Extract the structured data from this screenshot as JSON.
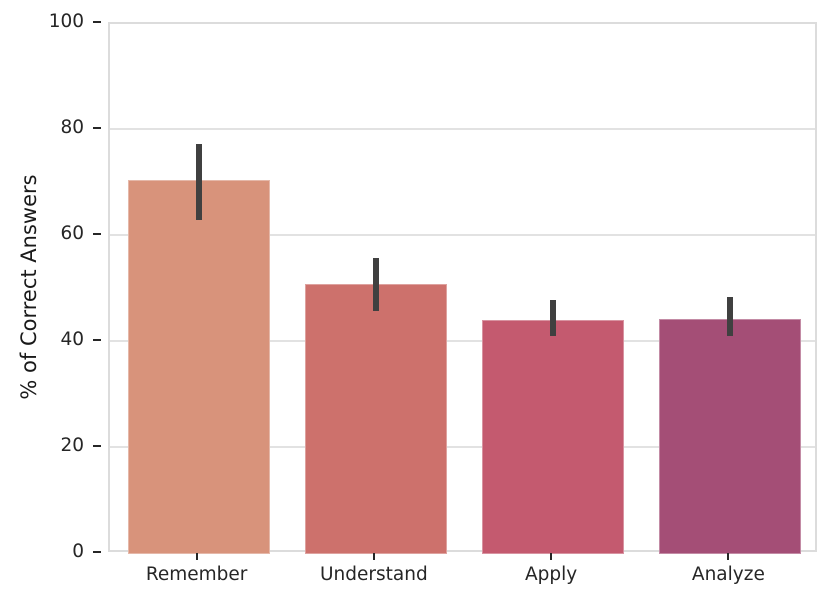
{
  "chart_data": {
    "type": "bar",
    "title": "",
    "xlabel": "",
    "ylabel": "% of Correct Answers",
    "categories": [
      "Remember",
      "Understand",
      "Apply",
      "Analyze"
    ],
    "values": [
      70.5,
      51.0,
      44.2,
      44.4
    ],
    "error_low": [
      63.1,
      45.8,
      41.1,
      41.1
    ],
    "error_high": [
      77.3,
      55.9,
      47.9,
      48.4
    ],
    "bar_colors": [
      "#d8937b",
      "#cd716c",
      "#c45a6f",
      "#a44e76"
    ],
    "ylim": [
      0,
      100
    ],
    "yticks": [
      0,
      20,
      40,
      60,
      80,
      100
    ],
    "grid": true,
    "legend": "none",
    "colors": {
      "background": "#ffffff",
      "gridline": "#e2e2e2",
      "spine": "#dcdcdc",
      "errorbar": "#404040",
      "tick": "#262626",
      "text": "#1a1a1a"
    }
  }
}
